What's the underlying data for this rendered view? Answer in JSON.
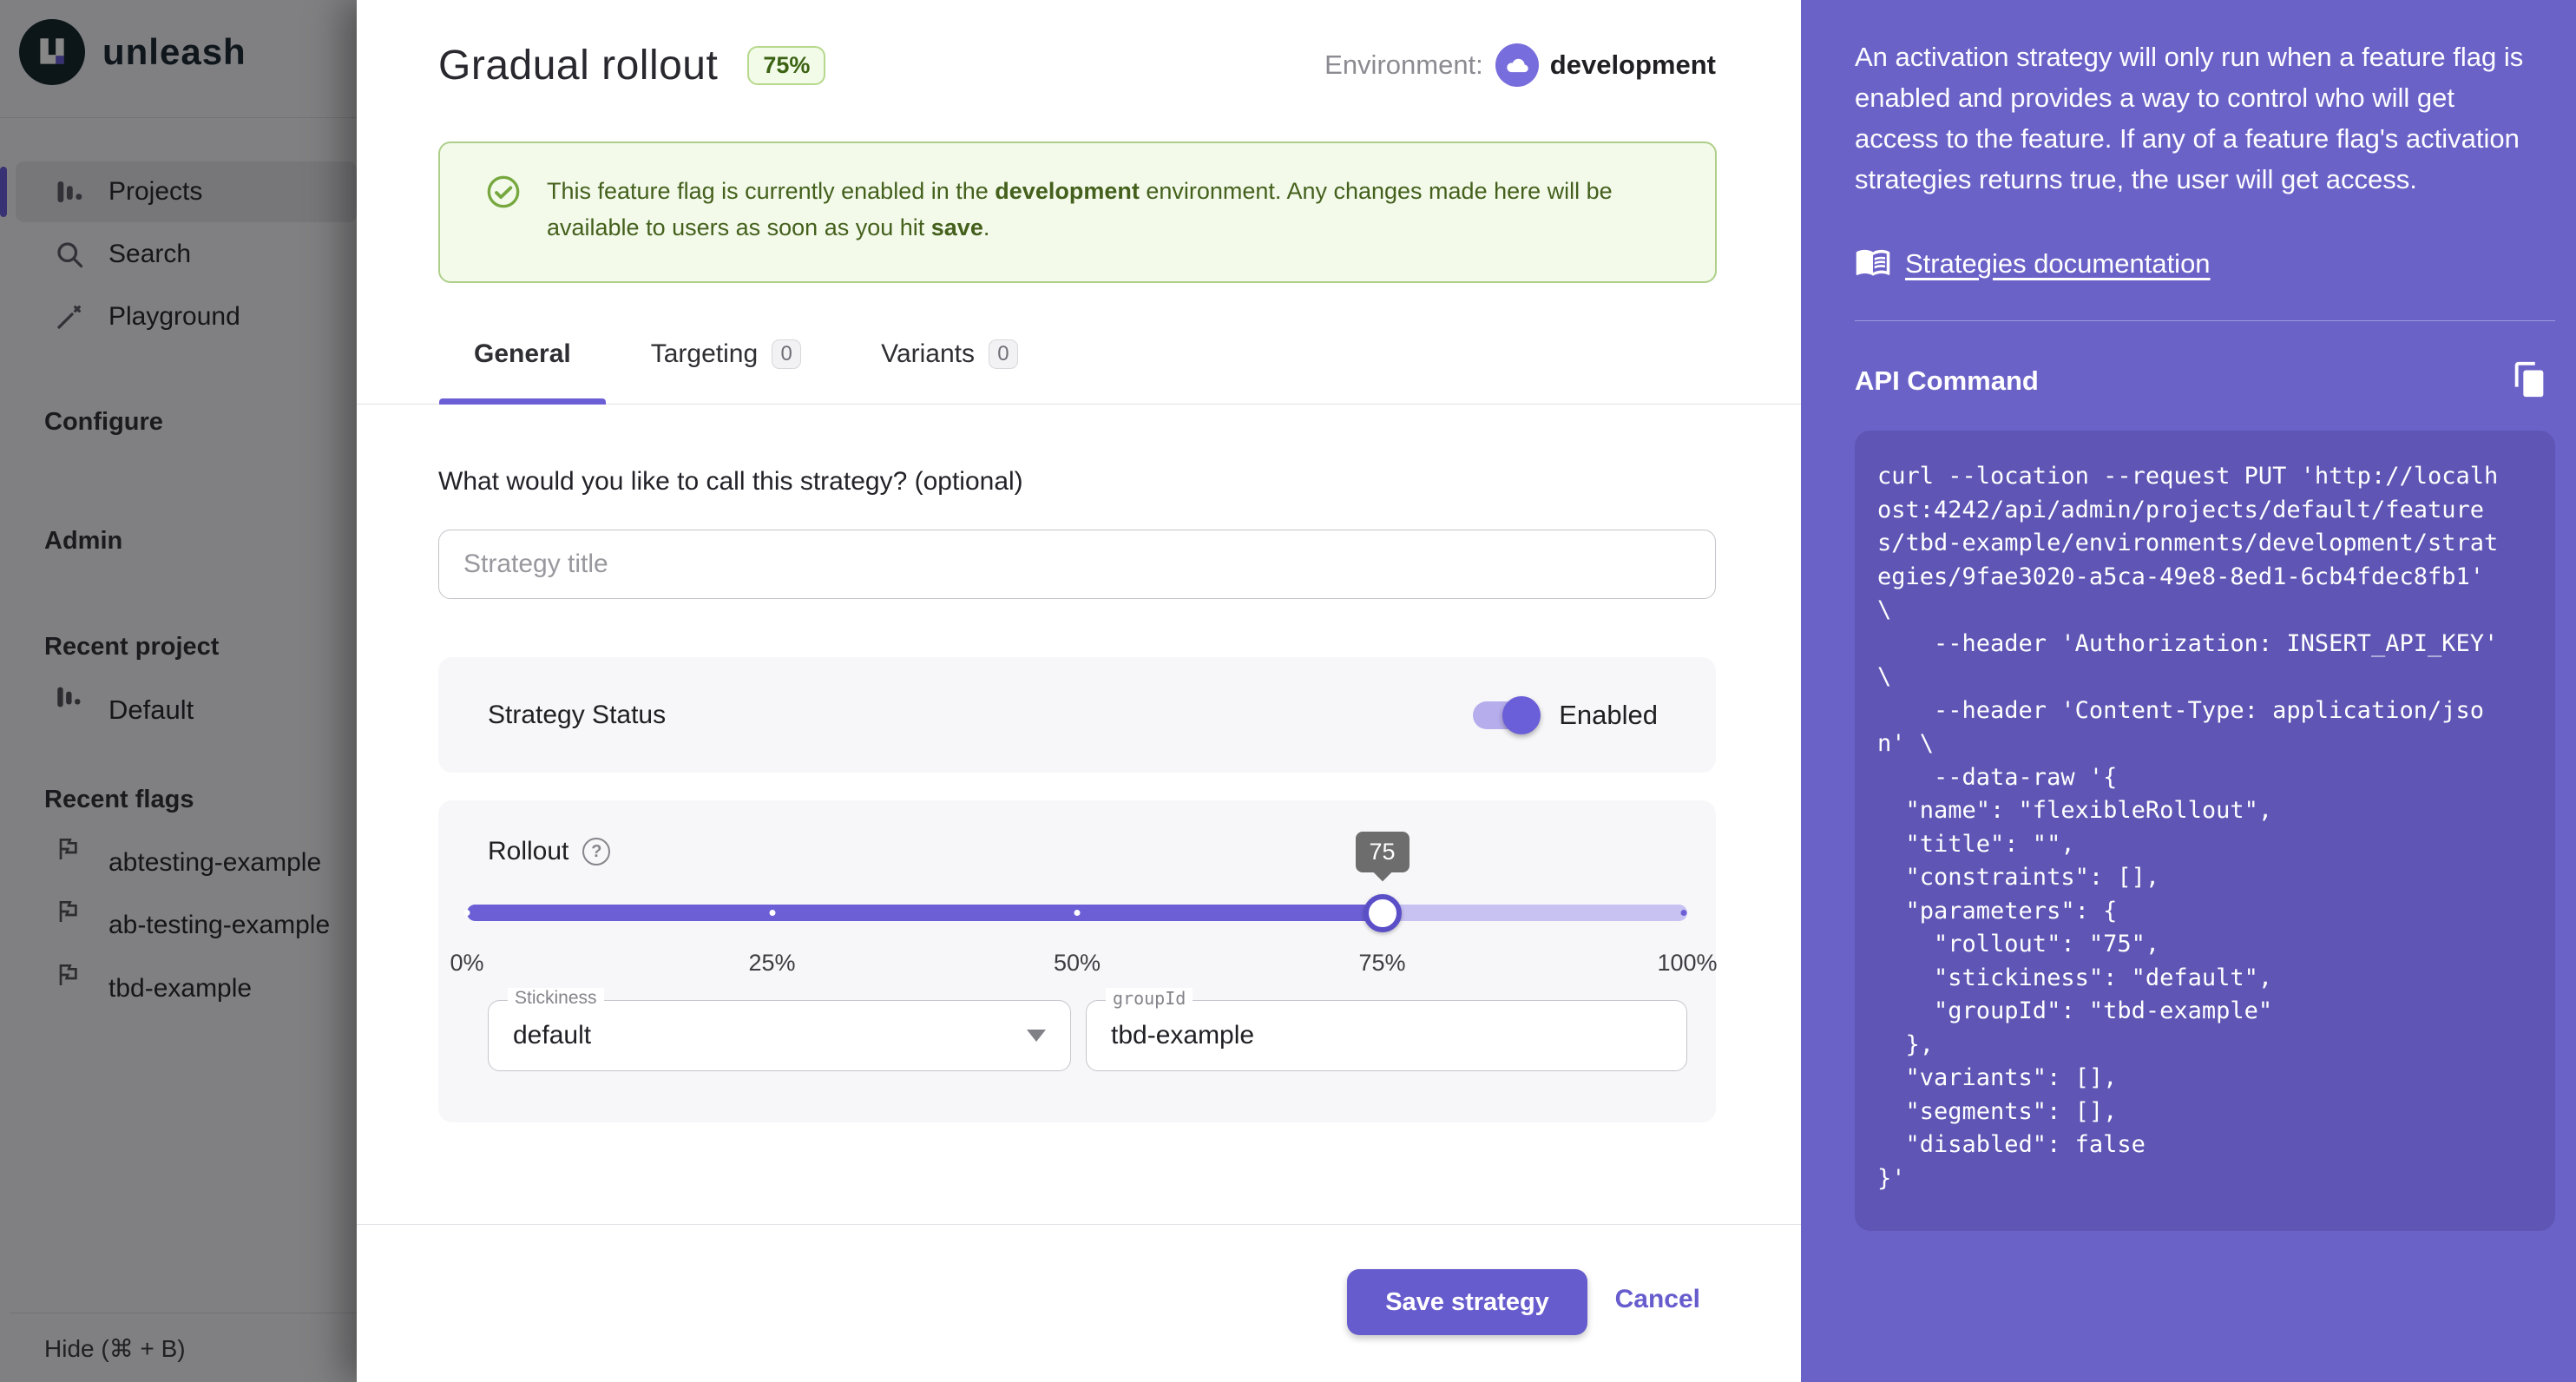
{
  "colors": {
    "brand_purple": "#675ccd",
    "help_panel_bg": "#6b62c8",
    "code_bg": "#5e55b4",
    "success_bg": "#f3faea",
    "success_border": "#aecf8a",
    "success_text": "#44601c"
  },
  "sidebar": {
    "logo_text": "unleash",
    "nav": [
      {
        "label": "Projects",
        "active": true
      },
      {
        "label": "Search",
        "active": false
      },
      {
        "label": "Playground",
        "active": false
      }
    ],
    "sections": {
      "configure": "Configure",
      "admin": "Admin"
    },
    "recent_project": {
      "header": "Recent project",
      "items": [
        {
          "label": "Default"
        }
      ]
    },
    "recent_flags": {
      "header": "Recent flags",
      "items": [
        {
          "label": "abtesting-example"
        },
        {
          "label": "ab-testing-example"
        },
        {
          "label": "tbd-example"
        }
      ]
    },
    "hide_label": "Hide (⌘ + B)"
  },
  "modal": {
    "title": "Gradual rollout",
    "badge": "75%",
    "environment_label": "Environment:",
    "environment_value": "development",
    "alert": {
      "part1": "This feature flag is currently enabled in the ",
      "env_bold": "development",
      "part2": " environment. Any changes made here will be available to users as soon as you hit ",
      "save_bold": "save",
      "part3": "."
    },
    "tabs": [
      {
        "label": "General",
        "active": true
      },
      {
        "label": "Targeting",
        "count": "0"
      },
      {
        "label": "Variants",
        "count": "0"
      }
    ],
    "form": {
      "title_question": "What would you like to call this strategy? (optional)",
      "title_placeholder": "Strategy title",
      "status_label": "Strategy Status",
      "status_value": "Enabled",
      "rollout_label": "Rollout",
      "help_glyph": "?",
      "slider": {
        "value": "75",
        "percent": 75,
        "marks": [
          "0%",
          "25%",
          "50%",
          "75%",
          "100%"
        ]
      },
      "stickiness_label": "Stickiness",
      "stickiness_value": "default",
      "groupid_label": "groupId",
      "groupid_value": "tbd-example"
    },
    "footer": {
      "save_label": "Save strategy",
      "cancel_label": "Cancel"
    }
  },
  "help_panel": {
    "description": "An activation strategy will only run when a feature flag is enabled and provides a way to control who will get access to the feature. If any of a feature flag's activation strategies returns true, the user will get access.",
    "docs_link": "Strategies documentation",
    "api_command_title": "API Command",
    "code": "curl --location --request PUT 'http://localh\nost:4242/api/admin/projects/default/feature\ns/tbd-example/environments/development/strat\negies/9fae3020-a5ca-49e8-8ed1-6cb4fdec8fb1'\n\\\n    --header 'Authorization: INSERT_API_KEY'\n\\\n    --header 'Content-Type: application/jso\nn' \\\n    --data-raw '{\n  \"name\": \"flexibleRollout\",\n  \"title\": \"\",\n  \"constraints\": [],\n  \"parameters\": {\n    \"rollout\": \"75\",\n    \"stickiness\": \"default\",\n    \"groupId\": \"tbd-example\"\n  },\n  \"variants\": [],\n  \"segments\": [],\n  \"disabled\": false\n}'"
  }
}
